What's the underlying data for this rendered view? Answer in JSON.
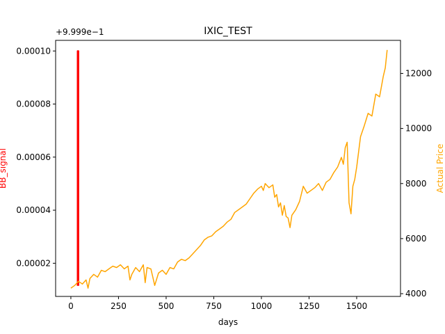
{
  "chart_data": {
    "type": "line",
    "title": "IXIC_TEST",
    "xlabel": "days",
    "ylabel_left": "BB_signal",
    "ylabel_right": "Actual Price",
    "offset_label": "+9.999e−1",
    "xlim": [
      -80,
      1730
    ],
    "ylim_left": [
      7.5e-06,
      0.000104
    ],
    "ylim_right": [
      3900,
      13200
    ],
    "x_ticks": [
      0,
      250,
      500,
      750,
      1000,
      1250,
      1500
    ],
    "x_tick_labels": [
      "0",
      "250",
      "500",
      "750",
      "1000",
      "1250",
      "1500"
    ],
    "y_left_ticks": [
      2e-05,
      4e-05,
      6e-05,
      8e-05,
      0.0001
    ],
    "y_left_tick_labels": [
      "0.00002",
      "0.00004",
      "0.00006",
      "0.00008",
      "0.00010"
    ],
    "y_right_ticks": [
      4000,
      6000,
      8000,
      10000,
      12000
    ],
    "y_right_tick_labels": [
      "4000",
      "6000",
      "8000",
      "10000",
      "12000"
    ],
    "colors": {
      "signal": "#ff0000",
      "price": "#ffa500",
      "axes": "#000000"
    },
    "series": [
      {
        "name": "BB_signal",
        "axis": "left",
        "x": [
          35,
          35,
          35,
          40,
          40,
          40
        ],
        "y": [
          1.15e-05,
          0.0001,
          0.0001,
          0.0001,
          0.0001,
          1.15e-05
        ]
      },
      {
        "name": "Actual Price",
        "axis": "right",
        "x": [
          0,
          20,
          40,
          60,
          80,
          90,
          100,
          120,
          140,
          160,
          180,
          200,
          220,
          240,
          260,
          280,
          300,
          310,
          320,
          340,
          360,
          380,
          390,
          400,
          420,
          430,
          440,
          460,
          480,
          500,
          520,
          540,
          560,
          580,
          600,
          620,
          640,
          660,
          680,
          700,
          720,
          740,
          760,
          780,
          800,
          820,
          840,
          860,
          880,
          900,
          920,
          940,
          960,
          980,
          1000,
          1010,
          1020,
          1040,
          1060,
          1070,
          1080,
          1090,
          1100,
          1110,
          1120,
          1130,
          1140,
          1150,
          1160,
          1180,
          1200,
          1220,
          1240,
          1260,
          1280,
          1300,
          1320,
          1340,
          1360,
          1380,
          1400,
          1420,
          1430,
          1440,
          1450,
          1460,
          1470,
          1480,
          1490,
          1500,
          1520,
          1540,
          1560,
          1580,
          1600,
          1620,
          1640,
          1650,
          1660
        ],
        "y": [
          4200,
          4300,
          4450,
          4350,
          4500,
          4200,
          4550,
          4700,
          4600,
          4850,
          4800,
          4900,
          5000,
          4950,
          5050,
          4900,
          5000,
          4500,
          4700,
          4950,
          4800,
          5050,
          4400,
          4950,
          4900,
          4600,
          4300,
          4750,
          4850,
          4700,
          4950,
          4900,
          5150,
          5250,
          5200,
          5300,
          5450,
          5600,
          5750,
          5950,
          6050,
          6100,
          6250,
          6350,
          6450,
          6600,
          6700,
          6950,
          7050,
          7150,
          7250,
          7450,
          7650,
          7800,
          7900,
          7750,
          8000,
          7850,
          7950,
          7500,
          7600,
          7150,
          7300,
          6850,
          7200,
          6800,
          6750,
          6400,
          6850,
          7050,
          7350,
          7900,
          7650,
          7750,
          7850,
          8000,
          7750,
          8050,
          8150,
          8400,
          8600,
          8950,
          8700,
          9300,
          9500,
          7300,
          6900,
          7900,
          8150,
          8600,
          9700,
          10100,
          10550,
          10450,
          11250,
          11150,
          11900,
          12200,
          12850
        ]
      }
    ]
  }
}
